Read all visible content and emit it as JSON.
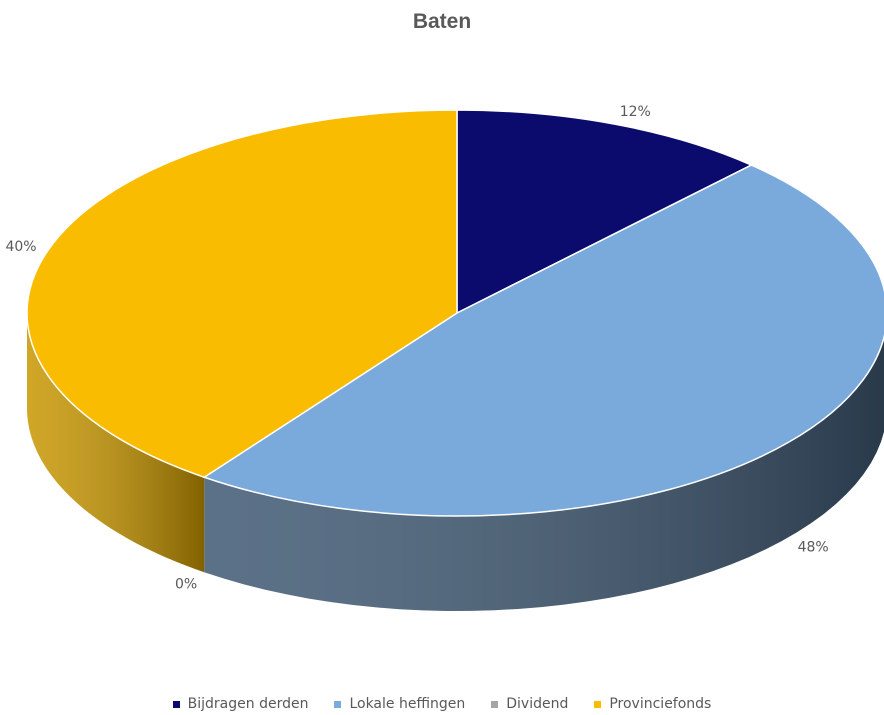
{
  "chart_data": {
    "type": "pie",
    "title": "Baten",
    "categories": [
      "Bijdragen derden",
      "Lokale heffingen",
      "Dividend",
      "Provinciefonds"
    ],
    "values": [
      12,
      48,
      0,
      40
    ],
    "data_labels": [
      "12%",
      "48%",
      "0%",
      "40%"
    ],
    "colors": [
      "#0B0B6E",
      "#7AAADB",
      "#A5A5A5",
      "#F9BC00"
    ],
    "side_colors": [
      "#05053A",
      "#3E5872",
      "#6E6E6E",
      "#C79600"
    ],
    "legend_position": "bottom",
    "style": "3d"
  }
}
